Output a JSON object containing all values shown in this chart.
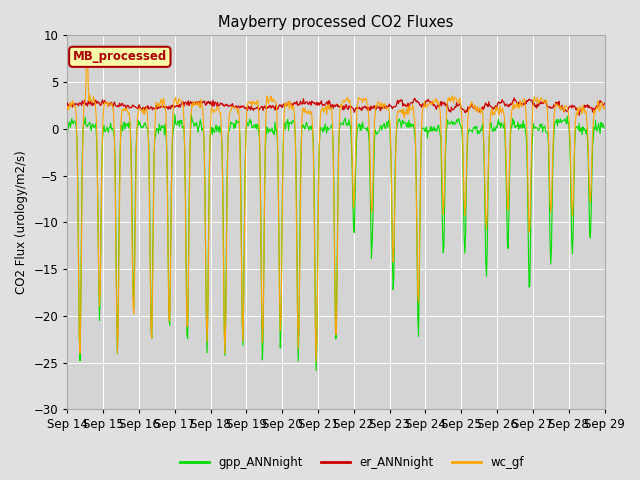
{
  "title": "Mayberry processed CO2 Fluxes",
  "ylabel": "CO2 Flux (urology/m2/s)",
  "ylim": [
    -30,
    10
  ],
  "fig_bg_color": "#e0e0e0",
  "plot_bg_color": "#d4d4d4",
  "grid_color": "#ffffff",
  "series_gpp_color": "#00dd00",
  "series_er_color": "#cc0000",
  "series_wc_color": "#ffa500",
  "legend_label": "MB_processed",
  "legend_label_color": "#aa0000",
  "legend_box_facecolor": "#ffffaa",
  "legend_box_edgecolor": "#aa0000",
  "xtick_labels": [
    "Sep 14",
    "Sep 15",
    "Sep 16",
    "Sep 17",
    "Sep 18",
    "Sep 19",
    "Sep 20",
    "Sep 21",
    "Sep 22",
    "Sep 23",
    "Sep 24",
    "Sep 25",
    "Sep 26",
    "Sep 27",
    "Sep 28",
    "Sep 29"
  ],
  "ytick_vals": [
    -30,
    -25,
    -20,
    -15,
    -10,
    -5,
    0,
    5,
    10
  ],
  "n_points": 720,
  "n_days": 15
}
